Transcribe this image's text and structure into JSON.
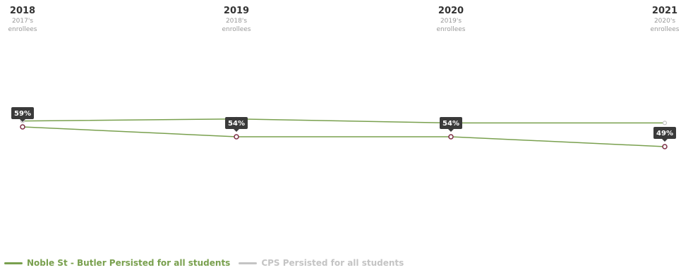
{
  "columns": [
    {
      "year": "2018",
      "sub1": "2017's",
      "sub2": "enrollees"
    },
    {
      "year": "2019",
      "sub1": "2018's",
      "sub2": "enrollees"
    },
    {
      "year": "2020",
      "sub1": "2019's",
      "sub2": "enrollees"
    },
    {
      "year": "2021",
      "sub1": "2020's",
      "sub2": "enrollees"
    }
  ],
  "legend": [
    {
      "label": "Noble St - Butler Persisted for all students",
      "color": "#79a04e"
    },
    {
      "label": "CPS Persisted for all students",
      "color": "#c4c4c4"
    }
  ],
  "chart_data": {
    "type": "line",
    "categories": [
      "2018",
      "2019",
      "2020",
      "2021"
    ],
    "series": [
      {
        "name": "Noble St - Butler Persisted for all students",
        "values": [
          59,
          54,
          54,
          49
        ],
        "labels": [
          "59%",
          "54%",
          "54%",
          "49%"
        ]
      },
      {
        "name": "CPS Persisted for all students",
        "values": [
          62,
          63,
          61,
          61
        ]
      }
    ],
    "ylim": [
      0,
      100
    ],
    "grid": false,
    "legend_position": "bottom-left",
    "colors": {
      "line": "#79a04e",
      "cps_marker": "#c4c4c4",
      "school_marker": "#7b2d43",
      "label_bg": "#3a3a3a"
    }
  }
}
